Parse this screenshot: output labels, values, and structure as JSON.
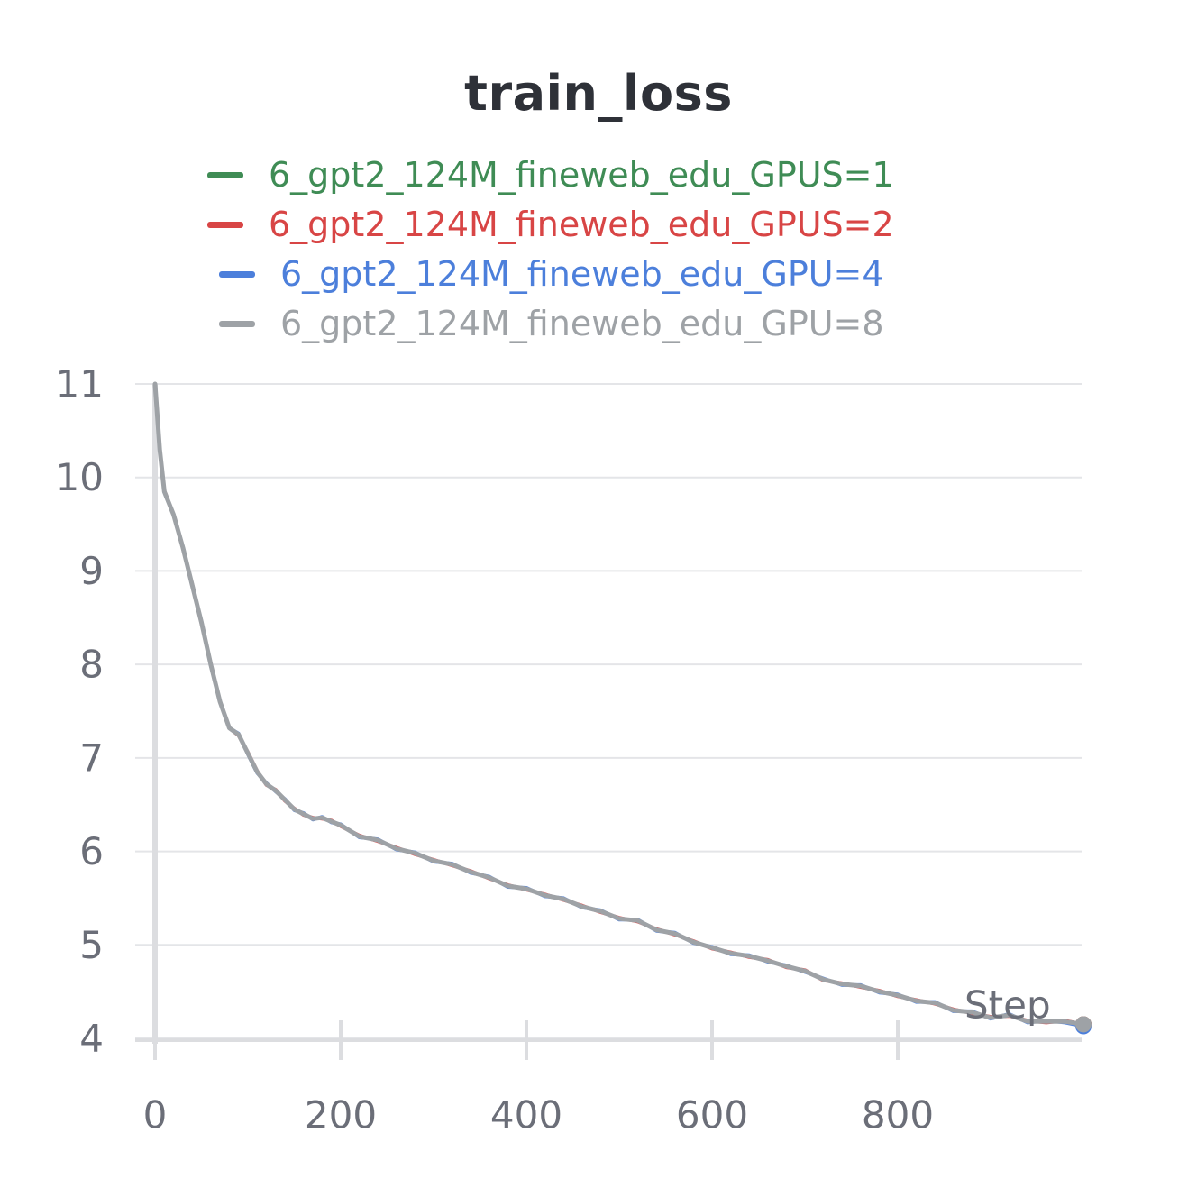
{
  "chart_data": {
    "type": "line",
    "title": "train_loss",
    "xlabel": "Step",
    "ylabel": "",
    "xlim": [
      0,
      1000
    ],
    "ylim": [
      4,
      11
    ],
    "x_ticks": [
      "0",
      "200",
      "400",
      "600",
      "800"
    ],
    "x_tick_values": [
      0,
      200,
      400,
      600,
      800
    ],
    "y_ticks": [
      "4",
      "5",
      "6",
      "7",
      "8",
      "9",
      "10",
      "11"
    ],
    "y_tick_values": [
      4,
      5,
      6,
      7,
      8,
      9,
      10,
      11
    ],
    "grid": true,
    "legend_position": "top-center",
    "x": [
      0,
      5,
      10,
      20,
      30,
      40,
      50,
      60,
      70,
      80,
      90,
      100,
      110,
      120,
      130,
      140,
      150,
      160,
      170,
      180,
      190,
      200,
      220,
      240,
      260,
      280,
      300,
      320,
      340,
      360,
      380,
      400,
      420,
      440,
      460,
      480,
      500,
      520,
      540,
      560,
      580,
      600,
      620,
      640,
      660,
      680,
      700,
      720,
      740,
      760,
      780,
      800,
      820,
      840,
      860,
      880,
      900,
      920,
      940,
      960,
      980,
      1000
    ],
    "series": [
      {
        "name": "6_gpt2_124M_fineweb_edu_GPUS=1",
        "color": "#3f8c55",
        "values": [
          11.0,
          10.3,
          9.85,
          9.6,
          9.25,
          8.85,
          8.45,
          8.0,
          7.6,
          7.32,
          7.25,
          7.05,
          6.85,
          6.72,
          6.65,
          6.55,
          6.45,
          6.4,
          6.35,
          6.36,
          6.32,
          6.28,
          6.16,
          6.12,
          6.03,
          5.98,
          5.9,
          5.86,
          5.78,
          5.72,
          5.63,
          5.6,
          5.53,
          5.49,
          5.41,
          5.36,
          5.28,
          5.26,
          5.16,
          5.12,
          5.03,
          4.97,
          4.91,
          4.88,
          4.83,
          4.77,
          4.72,
          4.63,
          4.58,
          4.56,
          4.5,
          4.46,
          4.4,
          4.38,
          4.3,
          4.28,
          4.22,
          4.25,
          4.18,
          4.18,
          4.18,
          4.15
        ]
      },
      {
        "name": "6_gpt2_124M_fineweb_edu_GPUS=2",
        "color": "#d84545",
        "values": [
          11.0,
          10.3,
          9.86,
          9.6,
          9.24,
          8.86,
          8.44,
          8.01,
          7.6,
          7.32,
          7.24,
          7.06,
          6.86,
          6.71,
          6.66,
          6.54,
          6.46,
          6.39,
          6.36,
          6.35,
          6.33,
          6.27,
          6.17,
          6.11,
          6.04,
          5.97,
          5.91,
          5.85,
          5.79,
          5.71,
          5.64,
          5.59,
          5.54,
          5.48,
          5.42,
          5.35,
          5.29,
          5.25,
          5.17,
          5.11,
          5.04,
          4.96,
          4.92,
          4.87,
          4.84,
          4.76,
          4.73,
          4.62,
          4.59,
          4.55,
          4.51,
          4.45,
          4.41,
          4.37,
          4.31,
          4.27,
          4.23,
          4.24,
          4.19,
          4.17,
          4.19,
          4.15
        ]
      },
      {
        "name": "6_gpt2_124M_fineweb_edu_GPU=4",
        "color": "#4c7fdb",
        "values": [
          11.0,
          10.3,
          9.84,
          9.6,
          9.26,
          8.84,
          8.46,
          7.99,
          7.6,
          7.32,
          7.26,
          7.04,
          6.84,
          6.73,
          6.64,
          6.56,
          6.44,
          6.41,
          6.34,
          6.37,
          6.31,
          6.29,
          6.15,
          6.13,
          6.02,
          5.99,
          5.89,
          5.87,
          5.77,
          5.73,
          5.62,
          5.61,
          5.52,
          5.5,
          5.4,
          5.37,
          5.27,
          5.27,
          5.15,
          5.13,
          5.02,
          4.98,
          4.9,
          4.89,
          4.82,
          4.78,
          4.71,
          4.64,
          4.57,
          4.57,
          4.49,
          4.47,
          4.39,
          4.39,
          4.29,
          4.29,
          4.21,
          4.26,
          4.17,
          4.19,
          4.17,
          4.13
        ]
      },
      {
        "name": "6_gpt2_124M_fineweb_edu_GPU=8",
        "color": "#9ea2a6",
        "values": [
          11.0,
          10.3,
          9.85,
          9.6,
          9.25,
          8.85,
          8.45,
          8.0,
          7.6,
          7.32,
          7.25,
          7.05,
          6.85,
          6.72,
          6.65,
          6.55,
          6.45,
          6.4,
          6.35,
          6.36,
          6.32,
          6.28,
          6.16,
          6.12,
          6.03,
          5.98,
          5.9,
          5.86,
          5.78,
          5.72,
          5.63,
          5.6,
          5.53,
          5.49,
          5.41,
          5.36,
          5.28,
          5.26,
          5.16,
          5.12,
          5.03,
          4.97,
          4.91,
          4.88,
          4.83,
          4.77,
          4.72,
          4.63,
          4.58,
          4.56,
          4.5,
          4.46,
          4.4,
          4.38,
          4.3,
          4.28,
          4.22,
          4.25,
          4.18,
          4.18,
          4.18,
          4.15
        ]
      }
    ]
  },
  "colors": {
    "title": "#2e3138",
    "axis_text": "#6b6e78",
    "grid": "#e4e5e8",
    "axis_line": "#dcdde0"
  }
}
